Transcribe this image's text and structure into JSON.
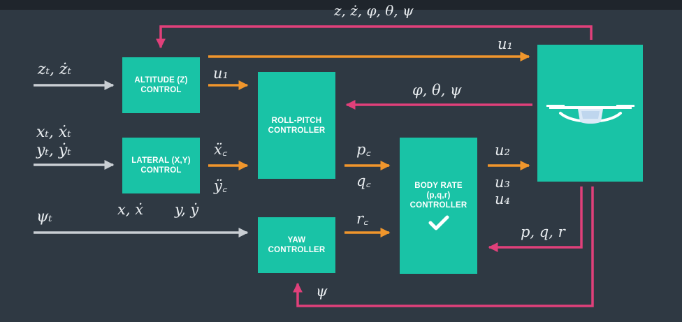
{
  "colors": {
    "background": "#2f3943",
    "block": "#19c3a6",
    "feedback": "#e0407a",
    "signal": "#f0962c",
    "input": "#c9ced3"
  },
  "blocks": {
    "altitude": {
      "line1": "ALTITUDE (Z)",
      "line2": "CONTROL"
    },
    "lateral": {
      "line1": "LATERAL (X,Y)",
      "line2": "CONTROL"
    },
    "roll_pitch": {
      "line1": "ROLL-PITCH",
      "line2": "CONTROLLER"
    },
    "yaw": {
      "line1": "YAW",
      "line2": "CONTROLLER"
    },
    "body_rate": {
      "line1": "BODY RATE",
      "line2": "(p,q,r)",
      "line3": "CONTROLLER",
      "icon": "check-icon"
    },
    "vehicle": {
      "icon": "quadrotor-icon"
    }
  },
  "labels": {
    "top_feedback": "z, ż, φ, θ, ψ",
    "altitude_input": "zₜ, żₜ",
    "lateral_input_x": "xₜ, ẋₜ",
    "lateral_input_y": "yₜ, ẏₜ",
    "yaw_input": "ψₜ",
    "u1_direct": "u₁",
    "u1_to_rollpitch": "u₁",
    "xddot_c": "ẍ꜀",
    "yddot_c": "ÿ꜀",
    "x_xdot": "x, ẋ",
    "y_ydot": "y, ẏ",
    "attitude_feedback": "φ, θ, ψ",
    "p_c": "p꜀",
    "q_c": "q꜀",
    "r_c": "r꜀",
    "u2": "u₂",
    "u3": "u₃",
    "u4": "u₄",
    "pqr_feedback": "p, q, r",
    "psi_feedback": "ψ"
  }
}
